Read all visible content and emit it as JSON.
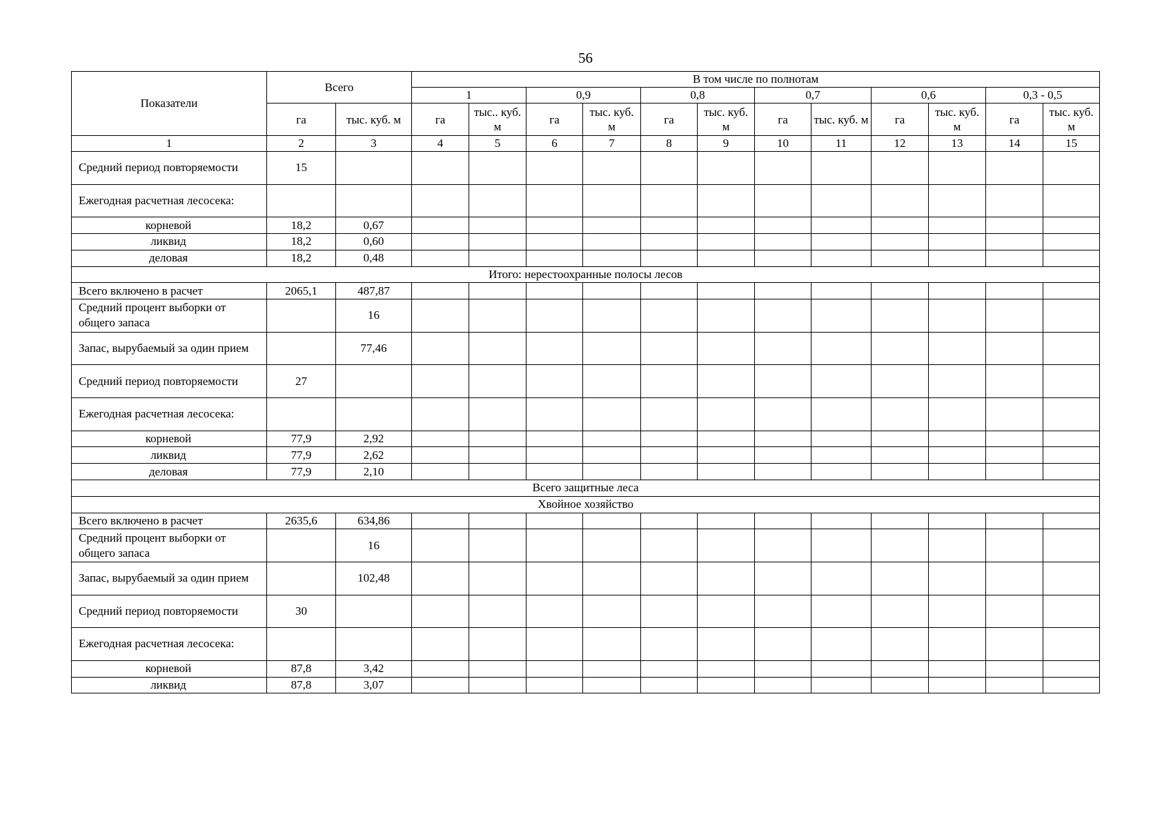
{
  "page_number": "56",
  "header": {
    "indicators": "Показатели",
    "total": "Всего",
    "by_density": "В том числе по полнотам",
    "densities": [
      "1",
      "0,9",
      "0,8",
      "0,7",
      "0,6",
      "0,3 - 0,5"
    ],
    "unit_ha": "га",
    "unit_total_m3": "тыс. куб. м",
    "unit_m3_cols": [
      "тыс.. куб. м",
      "тыс. куб. м",
      "тыс. куб. м",
      "тыс. куб. м",
      "тыс. куб. м",
      "тыс. куб. м"
    ],
    "column_numbers": [
      "1",
      "2",
      "3",
      "4",
      "5",
      "6",
      "7",
      "8",
      "9",
      "10",
      "11",
      "12",
      "13",
      "14",
      "15"
    ]
  },
  "rows": [
    {
      "label": "Средний период повторяемости",
      "ha": "15",
      "m3": "",
      "tall": true
    },
    {
      "label": "Ежегодная расчетная лесосека:",
      "ha": "",
      "m3": "",
      "tall": true
    },
    {
      "label": "корневой",
      "ha": "18,2",
      "m3": "0,67",
      "indent": true
    },
    {
      "label": "ликвид",
      "ha": "18,2",
      "m3": "0,60",
      "indent": true
    },
    {
      "label": "деловая",
      "ha": "18,2",
      "m3": "0,48",
      "indent": true
    },
    {
      "section": "Итого: нерестоохранные полосы лесов"
    },
    {
      "label": "Всего включено в расчет",
      "ha": "2065,1",
      "m3": "487,87"
    },
    {
      "label": "Средний процент выборки от общего запаса",
      "ha": "",
      "m3": "16",
      "tall": true
    },
    {
      "label": "Запас, вырубаемый за один прием",
      "ha": "",
      "m3": "77,46",
      "tall": true
    },
    {
      "label": "Средний период повторяемости",
      "ha": "27",
      "m3": "",
      "tall": true
    },
    {
      "label": "Ежегодная расчетная лесосека:",
      "ha": "",
      "m3": "",
      "tall": true
    },
    {
      "label": "корневой",
      "ha": "77,9",
      "m3": "2,92",
      "indent": true
    },
    {
      "label": "ликвид",
      "ha": "77,9",
      "m3": "2,62",
      "indent": true
    },
    {
      "label": "деловая",
      "ha": "77,9",
      "m3": "2,10",
      "indent": true
    },
    {
      "section": "Всего защитные леса"
    },
    {
      "section": "Хвойное хозяйство"
    },
    {
      "label": "Всего включено в расчет",
      "ha": "2635,6",
      "m3": "634,86"
    },
    {
      "label": "Средний процент выборки от общего запаса",
      "ha": "",
      "m3": "16",
      "tall": true
    },
    {
      "label": "Запас, вырубаемый за один прием",
      "ha": "",
      "m3": "102,48",
      "tall": true
    },
    {
      "label": "Средний период повторяемости",
      "ha": "30",
      "m3": "",
      "tall": true
    },
    {
      "label": "Ежегодная расчетная лесосека:",
      "ha": "",
      "m3": "",
      "tall": true
    },
    {
      "label": "корневой",
      "ha": "87,8",
      "m3": "3,42",
      "indent": true
    },
    {
      "label": "ликвид",
      "ha": "87,8",
      "m3": "3,07",
      "indent": true
    }
  ]
}
